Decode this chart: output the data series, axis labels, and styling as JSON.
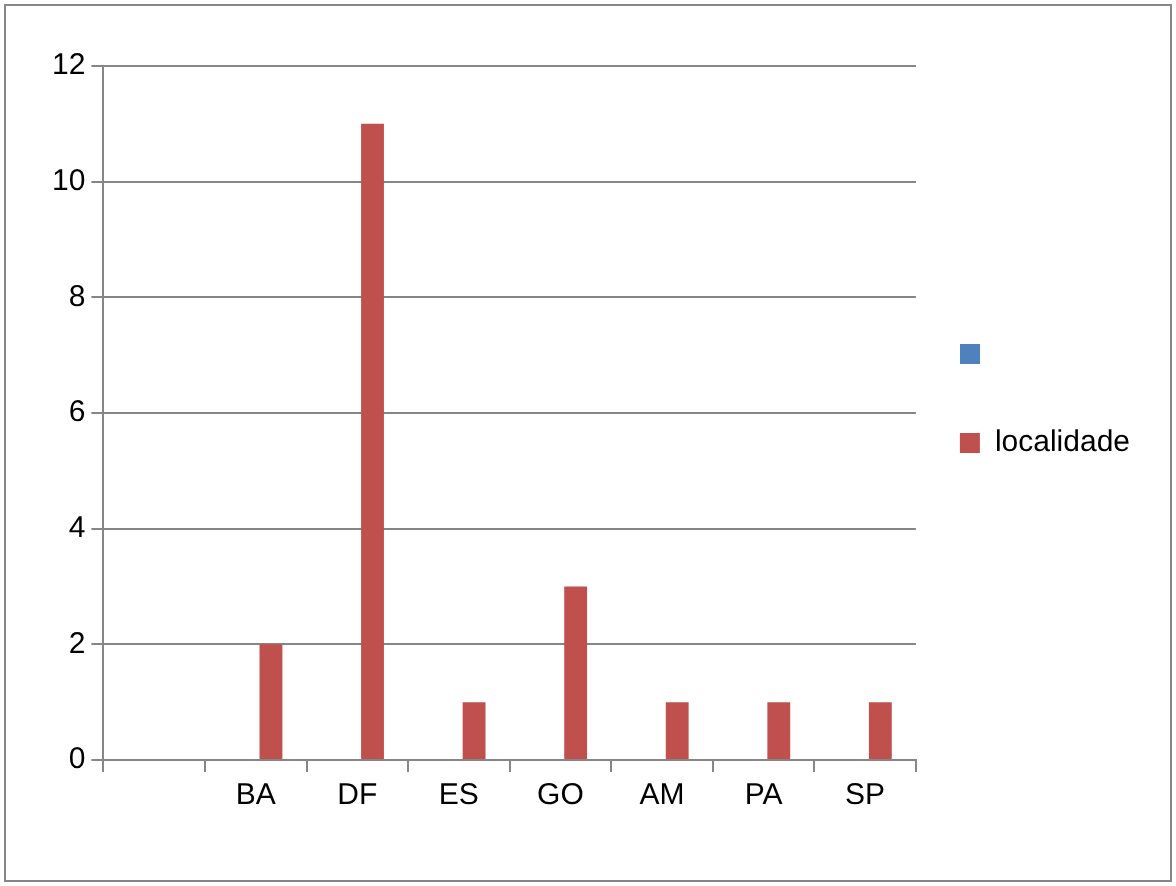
{
  "chart_data": {
    "type": "bar",
    "categories": [
      null,
      "BA",
      "DF",
      "ES",
      "GO",
      "AM",
      "PA",
      "SP"
    ],
    "series": [
      {
        "color": "#4f81bd",
        "values": [
          null,
          null,
          null,
          null,
          null,
          null,
          null,
          null
        ]
      },
      {
        "name": "localidade",
        "color": "#c0504d",
        "values": [
          null,
          2,
          11,
          1,
          3,
          1,
          1,
          1
        ]
      }
    ],
    "ylim": [
      0,
      12
    ],
    "yticks": [
      0,
      2,
      4,
      6,
      8,
      10,
      12
    ],
    "grid": "y",
    "legend": "right"
  }
}
